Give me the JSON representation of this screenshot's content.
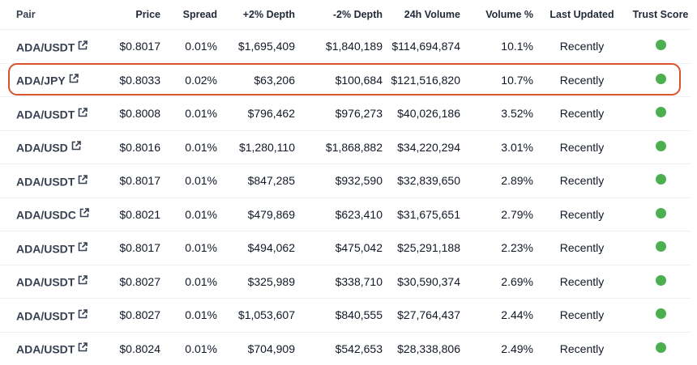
{
  "headers": {
    "pair": "Pair",
    "price": "Price",
    "spread": "Spread",
    "depth_plus": "+2% Depth",
    "depth_minus": "-2% Depth",
    "volume_24h": "24h Volume",
    "volume_pct": "Volume %",
    "last_updated": "Last Updated",
    "trust_score": "Trust Score"
  },
  "trust_color": "#4caf50",
  "highlight_color": "#d9532b",
  "highlighted_row": 1,
  "rows": [
    {
      "pair": "ADA/USDT",
      "price": "$0.8017",
      "spread": "0.01%",
      "depth_plus": "$1,695,409",
      "depth_minus": "$1,840,189",
      "volume_24h": "$114,694,874",
      "volume_pct": "10.1%",
      "last_updated": "Recently",
      "trust": "green"
    },
    {
      "pair": "ADA/JPY",
      "price": "$0.8033",
      "spread": "0.02%",
      "depth_plus": "$63,206",
      "depth_minus": "$100,684",
      "volume_24h": "$121,516,820",
      "volume_pct": "10.7%",
      "last_updated": "Recently",
      "trust": "green"
    },
    {
      "pair": "ADA/USDT",
      "price": "$0.8008",
      "spread": "0.01%",
      "depth_plus": "$796,462",
      "depth_minus": "$976,273",
      "volume_24h": "$40,026,186",
      "volume_pct": "3.52%",
      "last_updated": "Recently",
      "trust": "green"
    },
    {
      "pair": "ADA/USD",
      "price": "$0.8016",
      "spread": "0.01%",
      "depth_plus": "$1,280,110",
      "depth_minus": "$1,868,882",
      "volume_24h": "$34,220,294",
      "volume_pct": "3.01%",
      "last_updated": "Recently",
      "trust": "green"
    },
    {
      "pair": "ADA/USDT",
      "price": "$0.8017",
      "spread": "0.01%",
      "depth_plus": "$847,285",
      "depth_minus": "$932,590",
      "volume_24h": "$32,839,650",
      "volume_pct": "2.89%",
      "last_updated": "Recently",
      "trust": "green"
    },
    {
      "pair": "ADA/USDC",
      "price": "$0.8021",
      "spread": "0.01%",
      "depth_plus": "$479,869",
      "depth_minus": "$623,410",
      "volume_24h": "$31,675,651",
      "volume_pct": "2.79%",
      "last_updated": "Recently",
      "trust": "green"
    },
    {
      "pair": "ADA/USDT",
      "price": "$0.8017",
      "spread": "0.01%",
      "depth_plus": "$494,062",
      "depth_minus": "$475,042",
      "volume_24h": "$25,291,188",
      "volume_pct": "2.23%",
      "last_updated": "Recently",
      "trust": "green"
    },
    {
      "pair": "ADA/USDT",
      "price": "$0.8027",
      "spread": "0.01%",
      "depth_plus": "$325,989",
      "depth_minus": "$338,710",
      "volume_24h": "$30,590,374",
      "volume_pct": "2.69%",
      "last_updated": "Recently",
      "trust": "green"
    },
    {
      "pair": "ADA/USDT",
      "price": "$0.8027",
      "spread": "0.01%",
      "depth_plus": "$1,053,607",
      "depth_minus": "$840,555",
      "volume_24h": "$27,764,437",
      "volume_pct": "2.44%",
      "last_updated": "Recently",
      "trust": "green"
    },
    {
      "pair": "ADA/USDT",
      "price": "$0.8024",
      "spread": "0.01%",
      "depth_plus": "$704,909",
      "depth_minus": "$542,653",
      "volume_24h": "$28,338,806",
      "volume_pct": "2.49%",
      "last_updated": "Recently",
      "trust": "green"
    }
  ]
}
